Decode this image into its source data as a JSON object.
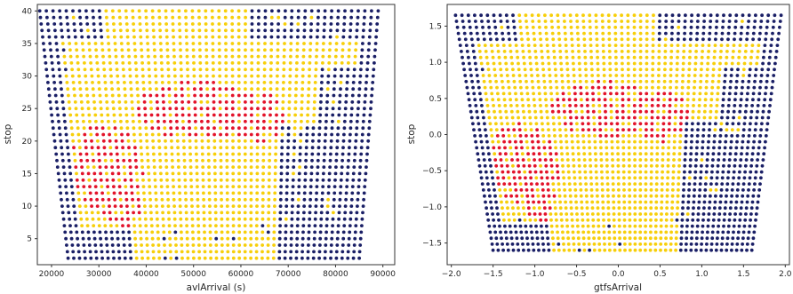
{
  "colors": {
    "low": "#1a1f66",
    "mid": "#f7cf0a",
    "high": "#e3132a"
  },
  "chart_data": [
    {
      "type": "scatter",
      "xlabel": "avlArrival (s)",
      "ylabel": "stop",
      "xlim": [
        17000,
        92500
      ],
      "ylim": [
        1,
        41
      ],
      "xticks": [
        20000,
        30000,
        40000,
        50000,
        60000,
        70000,
        80000,
        90000
      ],
      "yticks": [
        5,
        10,
        15,
        20,
        25,
        30,
        35,
        40
      ],
      "grid": false,
      "legend": "none",
      "point_grid": {
        "stops": [
          2,
          40
        ],
        "x_start": [
          23500,
          17500
        ],
        "x_end": [
          85000,
          89000
        ],
        "columns": 52
      },
      "color_scale": "dark blue = low, yellow = medium, red = high"
    },
    {
      "type": "scatter",
      "xlabel": "gtfsArrival",
      "ylabel": "stop",
      "xlim": [
        -2.05,
        2.05
      ],
      "ylim": [
        -1.8,
        1.8
      ],
      "xticks": [
        -2.0,
        -1.5,
        -1.0,
        -0.5,
        0.0,
        0.5,
        1.0,
        1.5,
        2.0
      ],
      "yticks": [
        -1.5,
        -1.0,
        -0.5,
        0.0,
        0.5,
        1.0,
        1.5
      ],
      "grid": false,
      "legend": "none",
      "point_grid": {
        "stops": [
          -1.6,
          1.65
        ],
        "x_start": [
          -1.5,
          -1.95
        ],
        "x_end": [
          1.6,
          1.95
        ],
        "columns": 52
      },
      "color_scale": "dark blue = low, yellow = medium, red = high"
    }
  ]
}
